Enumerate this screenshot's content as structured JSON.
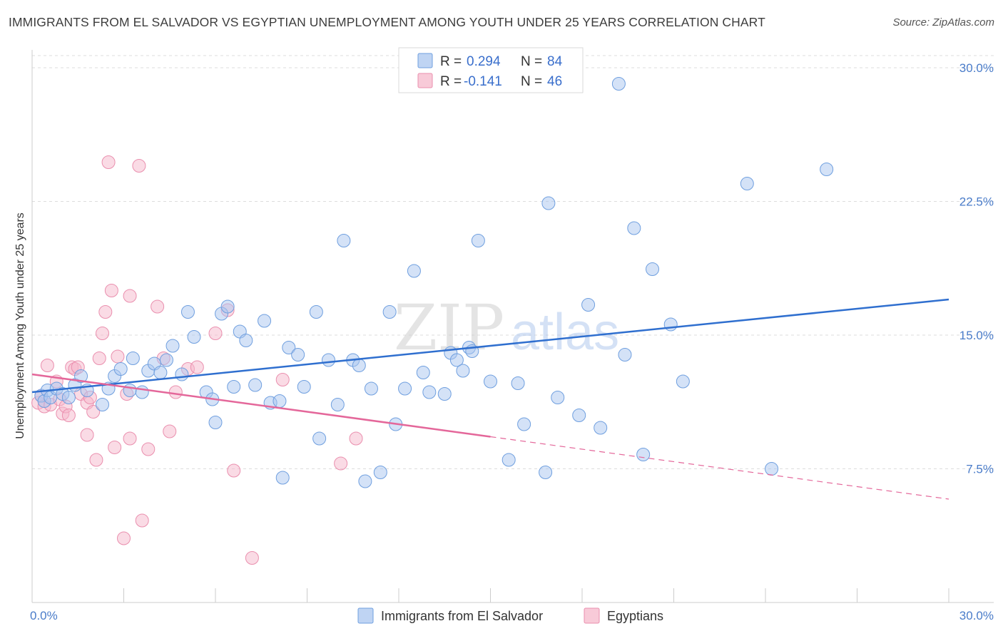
{
  "title": "IMMIGRANTS FROM EL SALVADOR VS EGYPTIAN UNEMPLOYMENT AMONG YOUTH UNDER 25 YEARS CORRELATION CHART",
  "source": "Source: ZipAtlas.com",
  "watermark": {
    "zip": "ZIP",
    "atlas": "atlas"
  },
  "colors": {
    "blue_fill": "#aac6ef",
    "blue_stroke": "#6f9fdf",
    "blue_line": "#2f6fcf",
    "pink_fill": "#f6b8cb",
    "pink_stroke": "#ea8fae",
    "pink_line": "#e4679a",
    "tick_label": "#4a7cc9",
    "grid": "#dddddd"
  },
  "legend": {
    "rows": [
      {
        "r_label": "R = ",
        "r_value": "0.294",
        "n_label": "N = ",
        "n_value": "84"
      },
      {
        "r_label": "R = ",
        "r_value": "-0.141",
        "n_label": "N = ",
        "n_value": "46"
      }
    ]
  },
  "chart_data": {
    "type": "scatter",
    "ylabel": "Unemployment Among Youth under 25 years",
    "xlabel": "",
    "xlim": [
      0,
      30
    ],
    "ylim": [
      0,
      31
    ],
    "x_tick_labels": [
      "0.0%",
      "30.0%"
    ],
    "y_ticks": [
      {
        "value": 7.5,
        "label": "7.5%"
      },
      {
        "value": 15,
        "label": "15.0%"
      },
      {
        "value": 22.5,
        "label": "22.5%"
      },
      {
        "value": 30,
        "label": "30.0%"
      }
    ],
    "grid": "horizontal-dashed",
    "series": [
      {
        "name": "Immigrants from El Salvador",
        "color": "blue",
        "trend": {
          "x": [
            0,
            30
          ],
          "y": [
            11.8,
            17.0
          ],
          "dashed_from": null
        },
        "points": [
          [
            0.3,
            11.6
          ],
          [
            0.4,
            11.3
          ],
          [
            0.5,
            11.9
          ],
          [
            0.6,
            11.5
          ],
          [
            0.8,
            12.0
          ],
          [
            1.0,
            11.7
          ],
          [
            1.2,
            11.5
          ],
          [
            1.4,
            12.2
          ],
          [
            1.6,
            12.7
          ],
          [
            1.8,
            11.9
          ],
          [
            2.3,
            11.1
          ],
          [
            2.5,
            12.0
          ],
          [
            2.7,
            12.7
          ],
          [
            2.9,
            13.1
          ],
          [
            3.2,
            11.9
          ],
          [
            3.3,
            13.7
          ],
          [
            3.6,
            11.8
          ],
          [
            3.8,
            13.0
          ],
          [
            4.0,
            13.4
          ],
          [
            4.2,
            12.9
          ],
          [
            4.4,
            13.6
          ],
          [
            4.6,
            14.4
          ],
          [
            4.9,
            12.8
          ],
          [
            5.1,
            16.3
          ],
          [
            5.3,
            14.9
          ],
          [
            5.7,
            11.8
          ],
          [
            5.9,
            11.4
          ],
          [
            6.0,
            10.1
          ],
          [
            6.2,
            16.2
          ],
          [
            6.4,
            16.6
          ],
          [
            6.6,
            12.1
          ],
          [
            6.8,
            15.2
          ],
          [
            7.0,
            14.7
          ],
          [
            7.3,
            12.2
          ],
          [
            7.6,
            15.8
          ],
          [
            7.8,
            11.2
          ],
          [
            8.1,
            11.3
          ],
          [
            8.2,
            7.0
          ],
          [
            8.4,
            14.3
          ],
          [
            8.7,
            13.9
          ],
          [
            8.9,
            12.1
          ],
          [
            9.3,
            16.3
          ],
          [
            9.4,
            9.2
          ],
          [
            9.7,
            13.6
          ],
          [
            10.0,
            11.1
          ],
          [
            10.2,
            20.3
          ],
          [
            10.5,
            13.6
          ],
          [
            10.7,
            13.3
          ],
          [
            10.9,
            6.8
          ],
          [
            11.1,
            12.0
          ],
          [
            11.4,
            7.3
          ],
          [
            11.7,
            16.3
          ],
          [
            11.9,
            10.0
          ],
          [
            12.2,
            12.0
          ],
          [
            12.5,
            18.6
          ],
          [
            12.8,
            12.9
          ],
          [
            13.0,
            11.8
          ],
          [
            13.5,
            11.7
          ],
          [
            13.7,
            14.0
          ],
          [
            13.9,
            13.6
          ],
          [
            14.1,
            13.0
          ],
          [
            14.3,
            14.3
          ],
          [
            14.6,
            20.3
          ],
          [
            14.4,
            14.1
          ],
          [
            15.0,
            12.4
          ],
          [
            15.6,
            8.0
          ],
          [
            15.9,
            12.3
          ],
          [
            16.1,
            10.0
          ],
          [
            16.8,
            7.3
          ],
          [
            16.9,
            22.4
          ],
          [
            17.2,
            11.5
          ],
          [
            17.9,
            10.5
          ],
          [
            18.2,
            16.7
          ],
          [
            18.6,
            9.8
          ],
          [
            19.2,
            29.1
          ],
          [
            19.4,
            13.9
          ],
          [
            19.7,
            21.0
          ],
          [
            20.0,
            8.3
          ],
          [
            20.3,
            18.7
          ],
          [
            20.9,
            15.6
          ],
          [
            21.3,
            12.4
          ],
          [
            23.4,
            23.5
          ],
          [
            24.2,
            7.5
          ],
          [
            26.0,
            24.3
          ]
        ]
      },
      {
        "name": "Egyptians",
        "color": "pink",
        "trend": {
          "x": [
            0,
            30
          ],
          "y": [
            12.8,
            5.8
          ],
          "dashed_from": 15.0
        },
        "points": [
          [
            0.2,
            11.2
          ],
          [
            0.3,
            11.6
          ],
          [
            0.4,
            11.0
          ],
          [
            0.5,
            13.3
          ],
          [
            0.6,
            11.1
          ],
          [
            0.8,
            12.4
          ],
          [
            0.9,
            11.4
          ],
          [
            1.0,
            10.6
          ],
          [
            1.1,
            11.0
          ],
          [
            1.2,
            10.5
          ],
          [
            1.3,
            13.2
          ],
          [
            1.4,
            13.1
          ],
          [
            1.5,
            13.2
          ],
          [
            1.6,
            11.7
          ],
          [
            1.8,
            11.2
          ],
          [
            1.8,
            9.4
          ],
          [
            1.9,
            11.5
          ],
          [
            2.0,
            10.7
          ],
          [
            2.1,
            8.0
          ],
          [
            2.2,
            13.7
          ],
          [
            2.3,
            15.1
          ],
          [
            2.4,
            16.3
          ],
          [
            2.5,
            24.7
          ],
          [
            2.6,
            17.5
          ],
          [
            2.7,
            8.7
          ],
          [
            2.8,
            13.8
          ],
          [
            3.0,
            3.6
          ],
          [
            3.1,
            11.7
          ],
          [
            3.2,
            17.2
          ],
          [
            3.2,
            9.2
          ],
          [
            3.5,
            24.5
          ],
          [
            3.6,
            4.6
          ],
          [
            3.8,
            8.6
          ],
          [
            4.1,
            16.6
          ],
          [
            4.3,
            13.7
          ],
          [
            4.5,
            9.6
          ],
          [
            4.7,
            11.8
          ],
          [
            5.1,
            13.1
          ],
          [
            5.4,
            13.2
          ],
          [
            6.0,
            15.1
          ],
          [
            6.4,
            16.4
          ],
          [
            6.6,
            7.4
          ],
          [
            7.2,
            2.5
          ],
          [
            8.2,
            12.5
          ],
          [
            10.1,
            7.8
          ],
          [
            10.6,
            9.2
          ]
        ]
      }
    ],
    "bottom_legend": [
      "Immigrants from El Salvador",
      "Egyptians"
    ]
  }
}
